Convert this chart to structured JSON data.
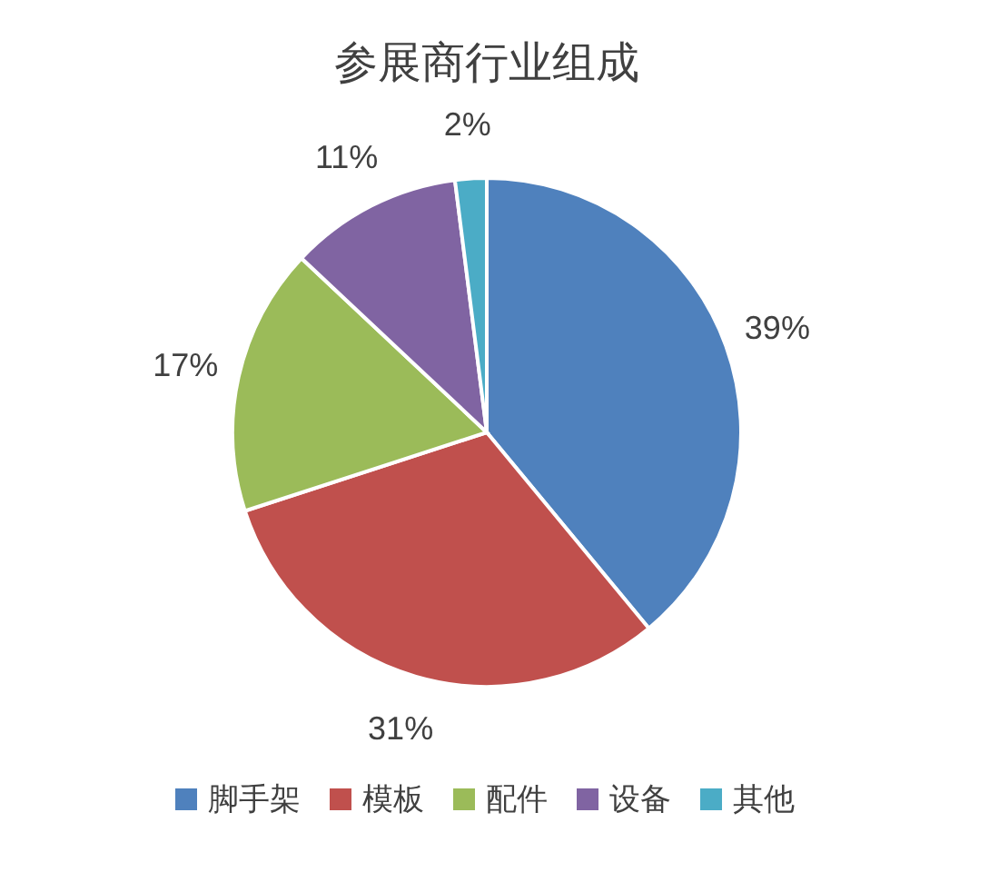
{
  "chart_data": {
    "type": "pie",
    "title": "参展商行业组成",
    "categories": [
      "脚手架",
      "模板",
      "配件",
      "设备",
      "其他"
    ],
    "values": [
      39,
      31,
      17,
      11,
      2
    ],
    "value_labels": [
      "39%",
      "31%",
      "17%",
      "11%",
      "2%"
    ],
    "colors": [
      "#4f81bd",
      "#c0504d",
      "#9bbb59",
      "#8064a2",
      "#4bacc6"
    ],
    "legend": "bottom"
  }
}
